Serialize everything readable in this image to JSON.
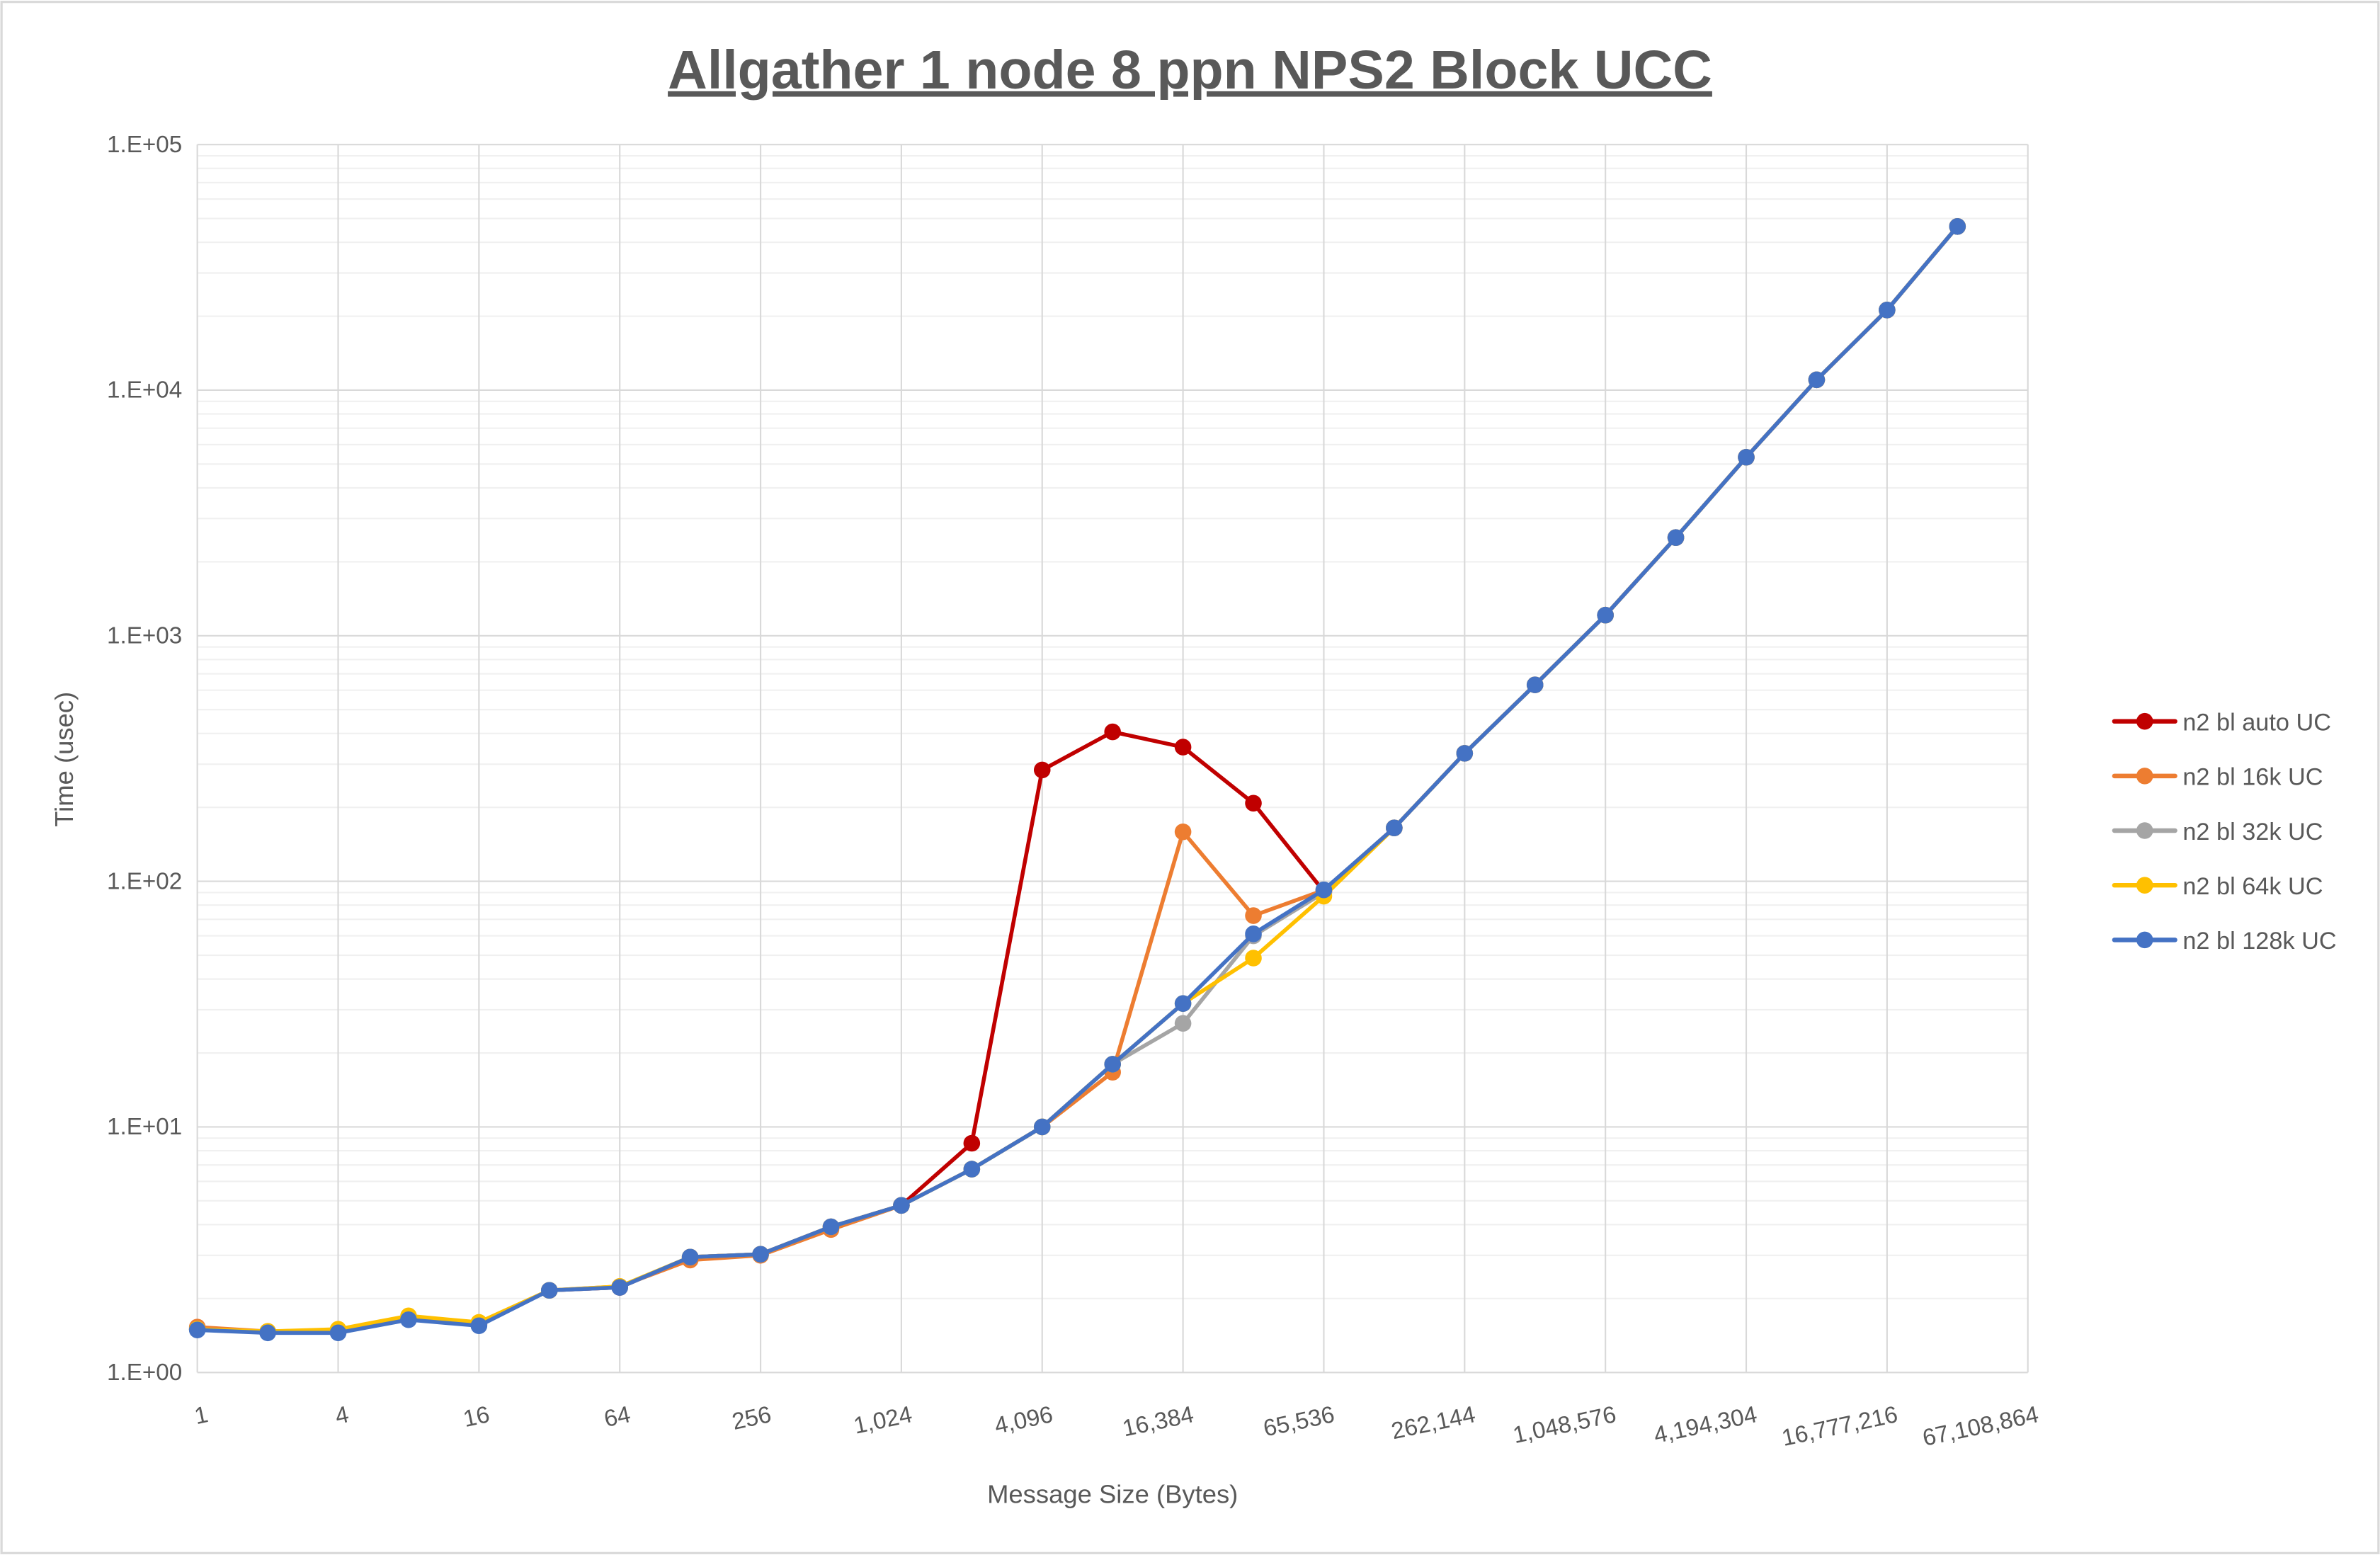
{
  "chart_data": {
    "type": "line",
    "title": "Allgather 1 node 8 ppn NPS2 Block UCC",
    "xlabel": "Message Size (Bytes)",
    "ylabel": "Time (usec)",
    "y_scale": "log",
    "ylim": [
      1,
      100000
    ],
    "y_tick_labels": [
      "1.E+00",
      "1.E+01",
      "1.E+02",
      "1.E+03",
      "1.E+04",
      "1.E+05"
    ],
    "grid": true,
    "legend_position": "right",
    "categories": [
      1,
      2,
      4,
      8,
      16,
      32,
      64,
      128,
      256,
      512,
      1024,
      2048,
      4096,
      8192,
      16384,
      32768,
      65536,
      131072,
      262144,
      524288,
      1048576,
      2097152,
      4194304,
      8388608,
      16777216,
      33554432,
      67108864
    ],
    "x_tick_labels": [
      "1",
      "4",
      "16",
      "64",
      "256",
      "1,024",
      "4,096",
      "16,384",
      "65,536",
      "262,144",
      "1,048,576",
      "4,194,304",
      "16,777,216",
      "67,108,864"
    ],
    "series": [
      {
        "name": "n2 bl auto UC",
        "color": "#C00000",
        "values": [
          1.5,
          1.46,
          1.46,
          1.66,
          1.57,
          2.16,
          2.22,
          2.95,
          3.03,
          3.92,
          4.79,
          8.58,
          284,
          406,
          352,
          208,
          91,
          165,
          332,
          631,
          1213,
          2510,
          5330,
          11020,
          21200,
          46400,
          null
        ]
      },
      {
        "name": "n2 bl 16k UC",
        "color": "#ED7D31",
        "values": [
          1.53,
          1.47,
          1.49,
          1.68,
          1.59,
          2.16,
          2.24,
          2.87,
          3.0,
          3.82,
          4.79,
          6.73,
          10.0,
          16.7,
          159,
          72.5,
          92,
          165,
          332,
          631,
          1213,
          2510,
          5330,
          11020,
          21200,
          46400,
          null
        ]
      },
      {
        "name": "n2 bl 32k UC",
        "color": "#A5A5A5",
        "values": [
          1.5,
          1.46,
          1.47,
          1.66,
          1.57,
          2.16,
          2.22,
          2.95,
          3.03,
          3.92,
          4.79,
          6.73,
          10.0,
          18.0,
          26.4,
          60,
          90,
          165,
          332,
          631,
          1213,
          2510,
          5330,
          11020,
          21200,
          46400,
          null
        ]
      },
      {
        "name": "n2 bl 64k UC",
        "color": "#FFC000",
        "values": [
          1.5,
          1.47,
          1.5,
          1.7,
          1.6,
          2.16,
          2.24,
          2.95,
          3.03,
          3.92,
          4.79,
          6.73,
          10.0,
          18.0,
          31.8,
          48.7,
          87,
          165,
          332,
          631,
          1213,
          2510,
          5330,
          11020,
          21200,
          46400,
          null
        ]
      },
      {
        "name": "n2 bl 128k UC",
        "color": "#4472C4",
        "values": [
          1.49,
          1.45,
          1.45,
          1.64,
          1.55,
          2.16,
          2.22,
          2.95,
          3.03,
          3.92,
          4.79,
          6.73,
          10.0,
          18.0,
          31.8,
          61.1,
          92.3,
          165,
          332,
          631,
          1213,
          2510,
          5330,
          11020,
          21200,
          46400,
          null
        ]
      }
    ]
  }
}
